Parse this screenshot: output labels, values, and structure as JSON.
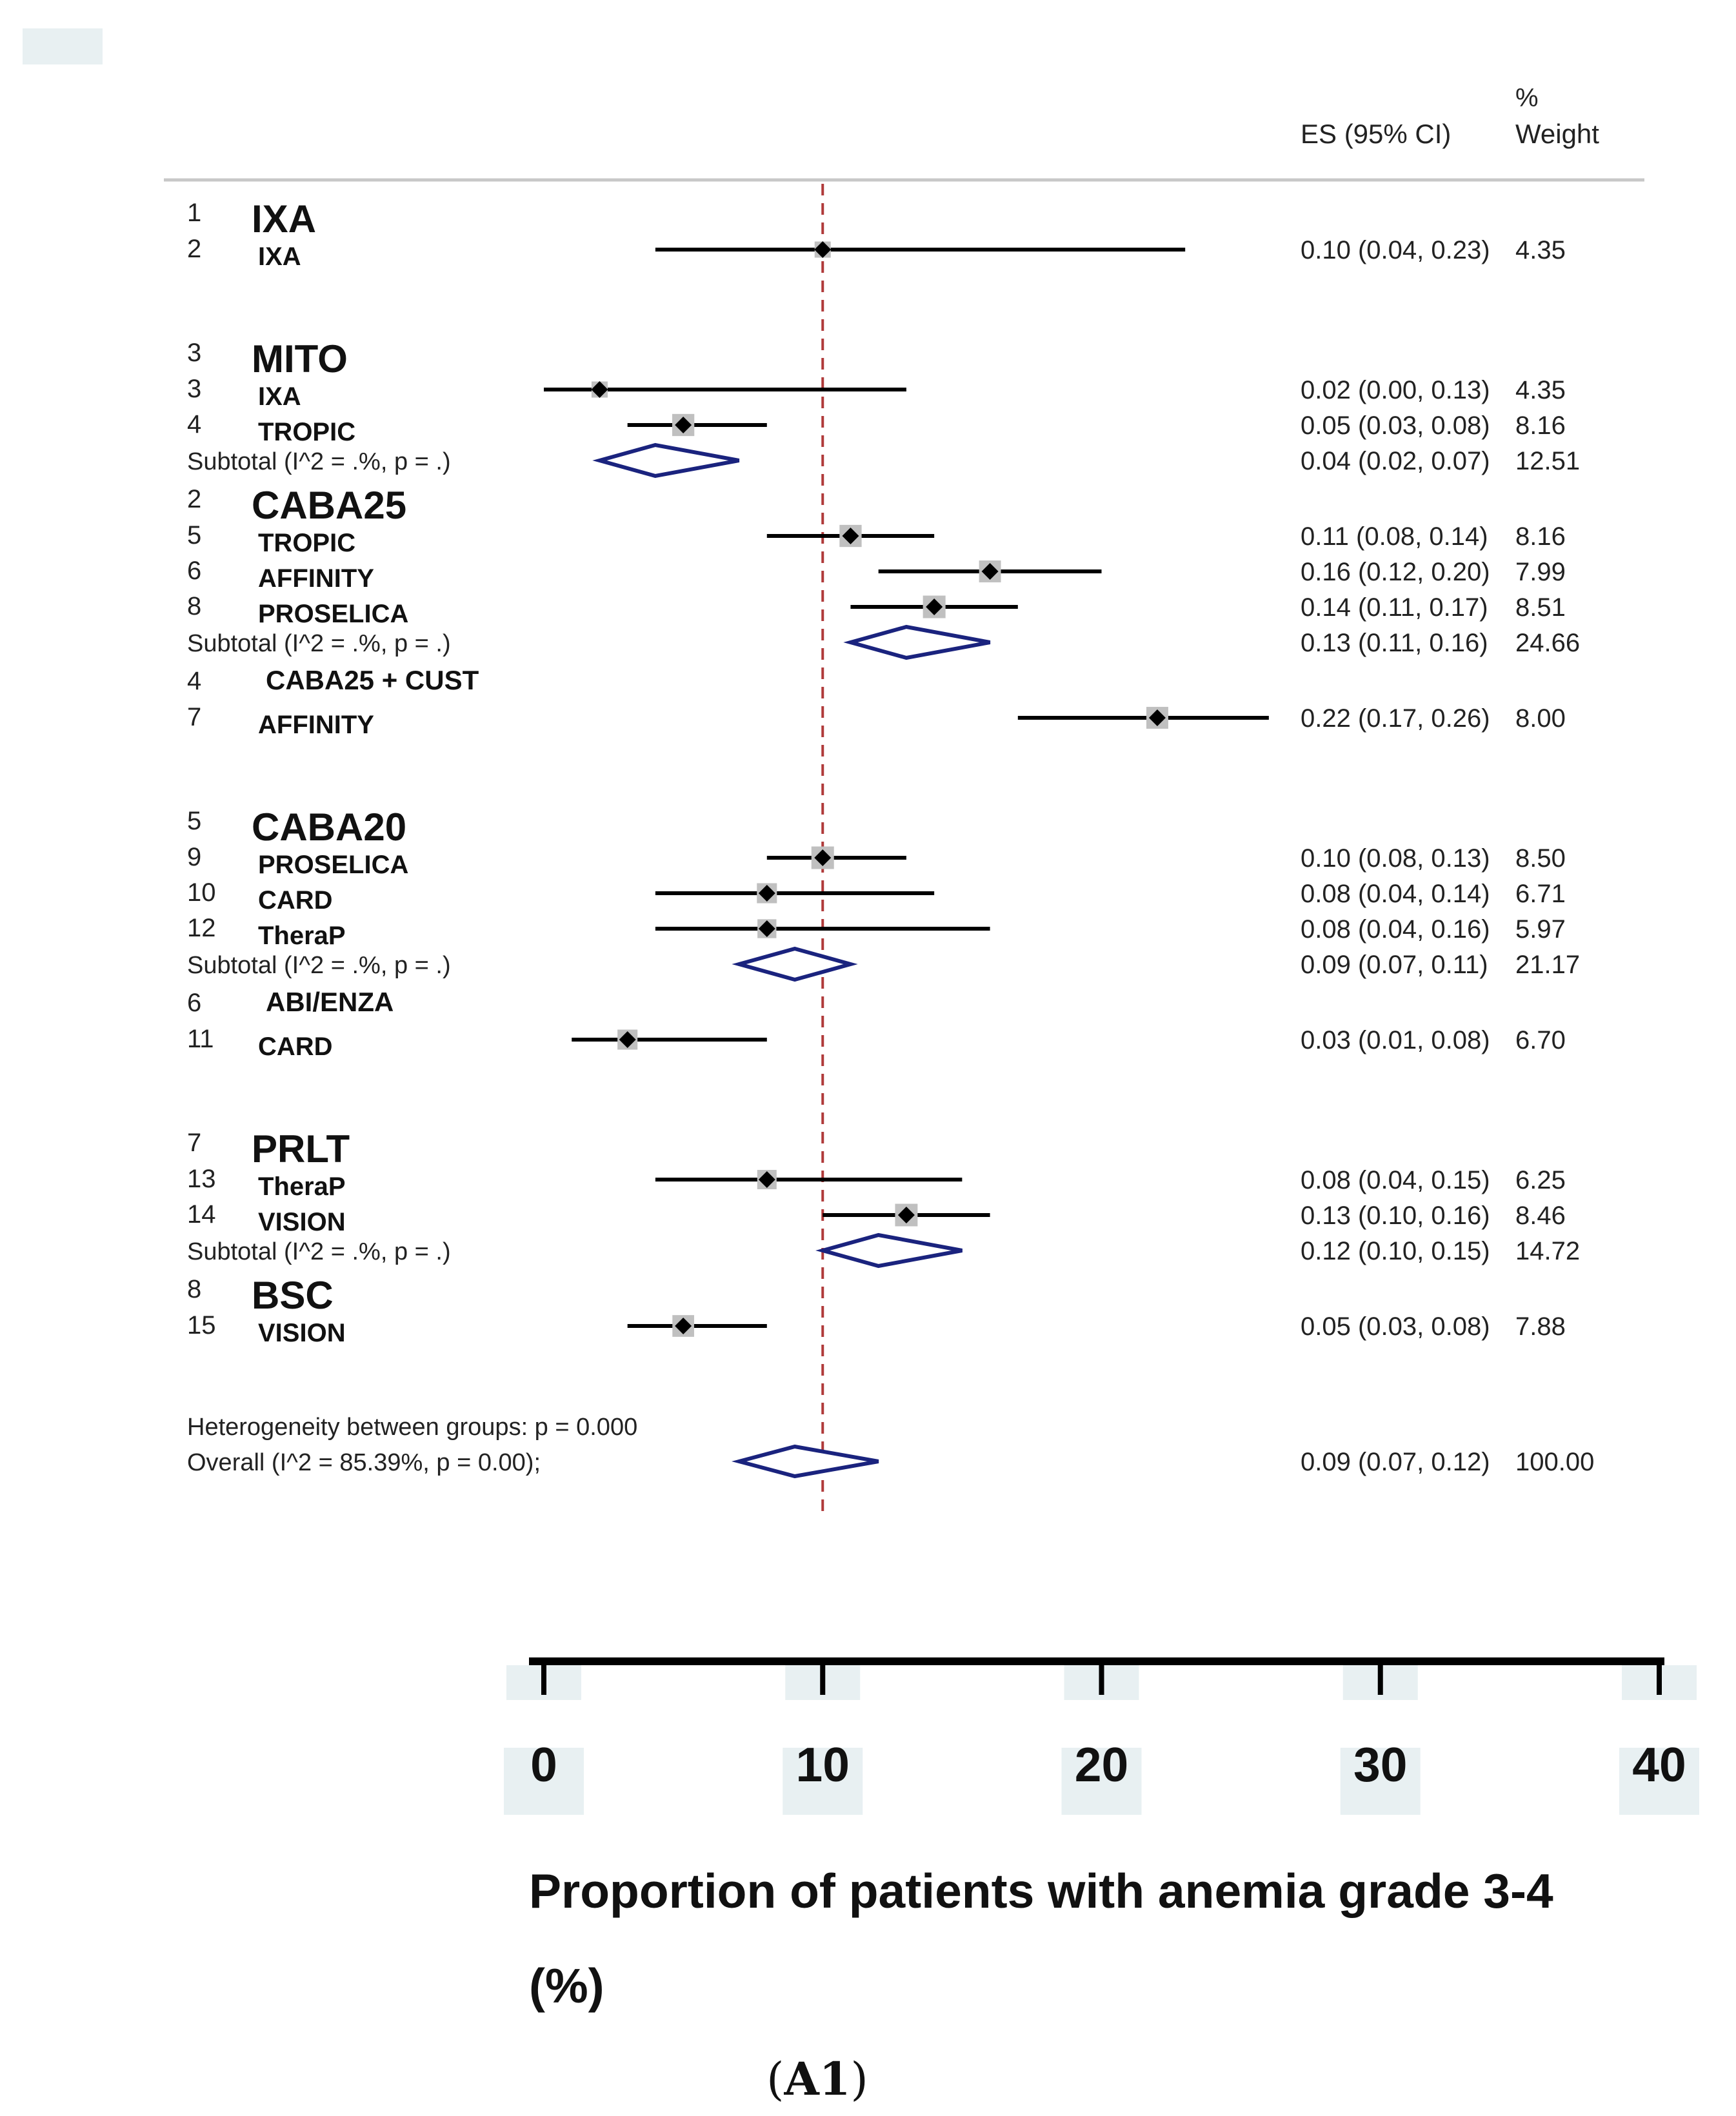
{
  "chart_data": {
    "type": "forest",
    "xlabel_line1": "Proportion of patients with anemia grade 3-4",
    "xlabel_line2": "(%)",
    "caption_open": "(",
    "caption_bold": "A1",
    "caption_close": ")",
    "xlim": [
      0,
      40
    ],
    "reference_line": 10,
    "x_ticks": [
      0,
      10,
      20,
      30,
      40
    ],
    "x_tick_labels": [
      "0",
      "10",
      "20",
      "30",
      "40"
    ],
    "header": {
      "es_label": "ES (95% CI)",
      "weight_label_top": "%",
      "weight_label_bottom": "Weight"
    },
    "rows": [
      {
        "kind": "group",
        "num": "1",
        "label": "IXA"
      },
      {
        "kind": "study",
        "num": "2",
        "label": "IXA",
        "es": 10,
        "lo": 4,
        "hi": 23,
        "weight": 4.35,
        "es_text": "0.10 (0.04, 0.23)",
        "weight_text": "4.35"
      },
      {
        "kind": "spacer"
      },
      {
        "kind": "group",
        "num": "3",
        "label": "MITO"
      },
      {
        "kind": "study",
        "num": "3",
        "label": "IXA",
        "es": 2,
        "lo": 0,
        "hi": 13,
        "weight": 4.35,
        "es_text": "0.02 (0.00, 0.13)",
        "weight_text": "4.35"
      },
      {
        "kind": "study",
        "num": "4",
        "label": "TROPIC",
        "es": 5,
        "lo": 3,
        "hi": 8,
        "weight": 8.16,
        "es_text": "0.05 (0.03, 0.08)",
        "weight_text": "8.16"
      },
      {
        "kind": "subtotal",
        "label": "Subtotal  (I^2 = .%, p = .)",
        "es": 4,
        "lo": 2,
        "hi": 7,
        "es_text": "0.04 (0.02, 0.07)",
        "weight_text": "12.51"
      },
      {
        "kind": "group",
        "num": "2",
        "label": "CABA25"
      },
      {
        "kind": "study",
        "num": "5",
        "label": "TROPIC",
        "es": 11,
        "lo": 8,
        "hi": 14,
        "weight": 8.16,
        "es_text": "0.11 (0.08, 0.14)",
        "weight_text": "8.16"
      },
      {
        "kind": "study",
        "num": "6",
        "label": "AFFINITY",
        "es": 16,
        "lo": 12,
        "hi": 20,
        "weight": 7.99,
        "es_text": "0.16 (0.12, 0.20)",
        "weight_text": "7.99"
      },
      {
        "kind": "study",
        "num": "8",
        "label": "PROSELICA",
        "es": 14,
        "lo": 11,
        "hi": 17,
        "weight": 8.51,
        "es_text": "0.14 (0.11, 0.17)",
        "weight_text": "8.51"
      },
      {
        "kind": "subtotal",
        "label": "Subtotal  (I^2 = .%, p = .)",
        "es": 13,
        "lo": 11,
        "hi": 16,
        "es_text": "0.13 (0.11, 0.16)",
        "weight_text": "24.66"
      },
      {
        "kind": "group",
        "num": "4",
        "label": "CABA25 + CUST",
        "small": true
      },
      {
        "kind": "study",
        "num": "7",
        "label": "AFFINITY",
        "es": 22,
        "lo": 17,
        "hi": 26,
        "weight": 8.0,
        "es_text": "0.22 (0.17, 0.26)",
        "weight_text": "8.00"
      },
      {
        "kind": "spacer"
      },
      {
        "kind": "group",
        "num": "5",
        "label": "CABA20"
      },
      {
        "kind": "study",
        "num": "9",
        "label": "PROSELICA",
        "es": 10,
        "lo": 8,
        "hi": 13,
        "weight": 8.5,
        "es_text": "0.10 (0.08, 0.13)",
        "weight_text": "8.50"
      },
      {
        "kind": "study",
        "num": "10",
        "label": "CARD",
        "es": 8,
        "lo": 4,
        "hi": 14,
        "weight": 6.71,
        "es_text": "0.08 (0.04, 0.14)",
        "weight_text": "6.71"
      },
      {
        "kind": "study",
        "num": "12",
        "label": "TheraP",
        "es": 8,
        "lo": 4,
        "hi": 16,
        "weight": 5.97,
        "es_text": "0.08 (0.04, 0.16)",
        "weight_text": "5.97"
      },
      {
        "kind": "subtotal",
        "label": "Subtotal  (I^2 = .%, p = .)",
        "es": 9,
        "lo": 7,
        "hi": 11,
        "es_text": "0.09 (0.07, 0.11)",
        "weight_text": "21.17"
      },
      {
        "kind": "group",
        "num": "6",
        "label": "ABI/ENZA",
        "small": true
      },
      {
        "kind": "study",
        "num": "11",
        "label": "CARD",
        "es": 3,
        "lo": 1,
        "hi": 8,
        "weight": 6.7,
        "es_text": "0.03 (0.01, 0.08)",
        "weight_text": "6.70"
      },
      {
        "kind": "spacer"
      },
      {
        "kind": "group",
        "num": "7",
        "label": "PRLT"
      },
      {
        "kind": "study",
        "num": "13",
        "label": "TheraP",
        "es": 8,
        "lo": 4,
        "hi": 15,
        "weight": 6.25,
        "es_text": "0.08 (0.04, 0.15)",
        "weight_text": "6.25"
      },
      {
        "kind": "study",
        "num": "14",
        "label": "VISION",
        "es": 13,
        "lo": 10,
        "hi": 16,
        "weight": 8.46,
        "es_text": "0.13 (0.10, 0.16)",
        "weight_text": "8.46"
      },
      {
        "kind": "subtotal",
        "label": "Subtotal  (I^2 = .%, p = .)",
        "es": 12,
        "lo": 10,
        "hi": 15,
        "es_text": "0.12 (0.10, 0.15)",
        "weight_text": "14.72"
      },
      {
        "kind": "group",
        "num": "8",
        "label": "BSC"
      },
      {
        "kind": "study",
        "num": "15",
        "label": "VISION",
        "es": 5,
        "lo": 3,
        "hi": 8,
        "weight": 7.88,
        "es_text": "0.05 (0.03, 0.08)",
        "weight_text": "7.88"
      },
      {
        "kind": "spacer"
      },
      {
        "kind": "note",
        "label": "Heterogeneity between groups: p = 0.000"
      },
      {
        "kind": "overall",
        "label": "Overall  (I^2 = 85.39%, p = 0.00);",
        "es": 9,
        "lo": 7,
        "hi": 12,
        "es_text": "0.09 (0.07, 0.12)",
        "weight_text": "100.00"
      }
    ]
  },
  "colors": {
    "whisker": "#000000",
    "point": "#000000",
    "weight_box": "#c0c0c0",
    "diamond": "#1a237e",
    "reference_line": "#b03a3a",
    "header_rule": "#c8c8c8",
    "tick_bg": "#e8f0f2",
    "text": "#222222"
  }
}
